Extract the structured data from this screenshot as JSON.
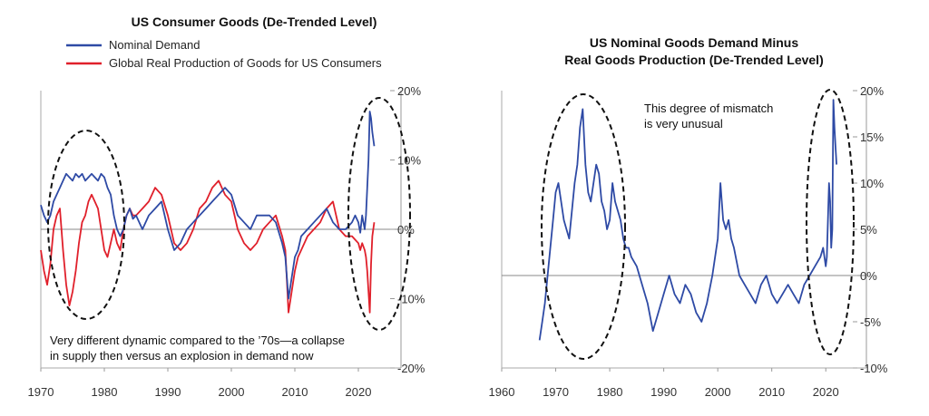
{
  "chart_data": [
    {
      "type": "line",
      "title": "US Consumer Goods (De-Trended Level)",
      "legend": [
        {
          "label": "Nominal Demand",
          "color": "#2e4aa5"
        },
        {
          "label": "Global Real Production of Goods for US Consumers",
          "color": "#e0202b"
        }
      ],
      "xlim": [
        1970,
        2025
      ],
      "ylim": [
        -0.2,
        0.2
      ],
      "x_ticks": [
        "1970",
        "1980",
        "1990",
        "2000",
        "2010",
        "2020"
      ],
      "y_ticks": [
        "20%",
        "10%",
        "0%",
        "-10%",
        "-20%"
      ],
      "annotation": "Very different dynamic compared to the '70s—a collapse in supply then versus an explosion in demand now",
      "annotation_lines": [
        "Very different dynamic compared to the ’70s—a collapse",
        "in supply then versus an explosion in demand now"
      ],
      "series": [
        {
          "name": "Nominal Demand",
          "color": "#2e4aa5",
          "x": [
            1970.0,
            1970.5,
            1971.0,
            1971.5,
            1972.0,
            1972.5,
            1973.0,
            1973.5,
            1974.0,
            1974.5,
            1975.0,
            1975.5,
            1976.0,
            1976.5,
            1977.0,
            1977.5,
            1978.0,
            1978.5,
            1979.0,
            1979.5,
            1980.0,
            1980.5,
            1981.0,
            1981.5,
            1982.0,
            1982.5,
            1983.0,
            1983.5,
            1984.0,
            1984.5,
            1985.0,
            1986.0,
            1987.0,
            1988.0,
            1989.0,
            1990.0,
            1991.0,
            1992.0,
            1993.0,
            1994.0,
            1995.0,
            1996.0,
            1997.0,
            1998.0,
            1999.0,
            2000.0,
            2001.0,
            2002.0,
            2003.0,
            2004.0,
            2005.0,
            2006.0,
            2007.0,
            2008.0,
            2008.5,
            2009.0,
            2009.5,
            2010.0,
            2010.5,
            2011.0,
            2012.0,
            2013.0,
            2014.0,
            2015.0,
            2016.0,
            2017.0,
            2018.0,
            2019.0,
            2019.5,
            2020.0,
            2020.3,
            2020.6,
            2021.0,
            2021.2,
            2021.4,
            2021.6,
            2021.8,
            2022.0,
            2022.2,
            2022.5
          ],
          "y": [
            0.035,
            0.02,
            0.01,
            0.02,
            0.04,
            0.05,
            0.06,
            0.07,
            0.08,
            0.075,
            0.07,
            0.08,
            0.075,
            0.08,
            0.07,
            0.075,
            0.08,
            0.075,
            0.07,
            0.08,
            0.075,
            0.06,
            0.05,
            0.02,
            0.0,
            -0.01,
            0.0,
            0.02,
            0.03,
            0.015,
            0.02,
            0.0,
            0.02,
            0.03,
            0.04,
            0.0,
            -0.03,
            -0.02,
            0.0,
            0.01,
            0.02,
            0.03,
            0.04,
            0.05,
            0.06,
            0.05,
            0.02,
            0.01,
            0.0,
            0.02,
            0.02,
            0.02,
            0.01,
            -0.02,
            -0.04,
            -0.1,
            -0.07,
            -0.04,
            -0.03,
            -0.01,
            0.0,
            0.01,
            0.02,
            0.03,
            0.01,
            0.0,
            0.0,
            0.01,
            0.02,
            0.01,
            -0.005,
            0.02,
            0.0,
            0.02,
            0.06,
            0.1,
            0.17,
            0.16,
            0.14,
            0.12
          ]
        },
        {
          "name": "Global Real Production of Goods for US Consumers",
          "color": "#e0202b",
          "x": [
            1970.0,
            1970.5,
            1971.0,
            1971.5,
            1972.0,
            1972.5,
            1973.0,
            1973.5,
            1974.0,
            1974.5,
            1975.0,
            1975.5,
            1976.0,
            1976.5,
            1977.0,
            1977.5,
            1978.0,
            1978.5,
            1979.0,
            1979.5,
            1980.0,
            1980.5,
            1981.0,
            1981.5,
            1982.0,
            1982.5,
            1983.0,
            1983.5,
            1984.0,
            1984.5,
            1985.0,
            1986.0,
            1987.0,
            1988.0,
            1989.0,
            1990.0,
            1991.0,
            1992.0,
            1993.0,
            1994.0,
            1995.0,
            1996.0,
            1997.0,
            1998.0,
            1999.0,
            2000.0,
            2001.0,
            2002.0,
            2003.0,
            2004.0,
            2005.0,
            2006.0,
            2007.0,
            2008.0,
            2008.5,
            2009.0,
            2009.5,
            2010.0,
            2010.5,
            2011.0,
            2012.0,
            2013.0,
            2014.0,
            2015.0,
            2016.0,
            2017.0,
            2018.0,
            2019.0,
            2019.5,
            2020.0,
            2020.3,
            2020.6,
            2021.0,
            2021.2,
            2021.4,
            2021.6,
            2021.8,
            2022.0,
            2022.2,
            2022.5
          ],
          "y": [
            -0.03,
            -0.06,
            -0.08,
            -0.05,
            0.0,
            0.02,
            0.03,
            -0.03,
            -0.08,
            -0.11,
            -0.09,
            -0.06,
            -0.02,
            0.01,
            0.02,
            0.04,
            0.05,
            0.04,
            0.03,
            0.0,
            -0.03,
            -0.04,
            -0.02,
            0.0,
            -0.02,
            -0.03,
            0.0,
            0.02,
            0.03,
            0.02,
            0.02,
            0.03,
            0.04,
            0.06,
            0.05,
            0.02,
            -0.02,
            -0.03,
            -0.02,
            0.0,
            0.03,
            0.04,
            0.06,
            0.07,
            0.05,
            0.04,
            0.0,
            -0.02,
            -0.03,
            -0.02,
            0.0,
            0.01,
            0.02,
            -0.01,
            -0.03,
            -0.12,
            -0.09,
            -0.06,
            -0.04,
            -0.03,
            -0.01,
            0.0,
            0.01,
            0.03,
            0.04,
            0.0,
            -0.01,
            -0.01,
            -0.015,
            -0.02,
            -0.03,
            -0.02,
            -0.03,
            -0.04,
            -0.06,
            -0.09,
            -0.12,
            -0.05,
            -0.01,
            0.01
          ]
        }
      ]
    },
    {
      "type": "line",
      "title": "US Nominal Goods Demand Minus Real Goods Production (De-Trended Level)",
      "title_lines": [
        "US Nominal Goods Demand Minus",
        "Real Goods Production (De-Trended Level)"
      ],
      "xlim": [
        1960,
        2025
      ],
      "ylim": [
        -0.1,
        0.2
      ],
      "x_ticks": [
        "1960",
        "1970",
        "1980",
        "1990",
        "2000",
        "2010",
        "2020"
      ],
      "y_ticks": [
        "20%",
        "15%",
        "10%",
        "5%",
        "0%",
        "-5%",
        "-10%"
      ],
      "annotation": "This degree of mismatch is very unusual",
      "annotation_lines": [
        "This degree of mismatch",
        "is very unusual"
      ],
      "series": [
        {
          "name": "US Nominal Goods Demand Minus Real Goods Production",
          "color": "#2e4aa5",
          "x": [
            1967.0,
            1967.5,
            1968.0,
            1968.5,
            1969.0,
            1969.5,
            1970.0,
            1970.5,
            1971.0,
            1971.5,
            1972.0,
            1972.5,
            1973.0,
            1973.5,
            1974.0,
            1974.5,
            1975.0,
            1975.5,
            1976.0,
            1976.5,
            1977.0,
            1977.5,
            1978.0,
            1978.5,
            1979.0,
            1979.5,
            1980.0,
            1980.5,
            1981.0,
            1981.5,
            1982.0,
            1982.5,
            1983.0,
            1983.5,
            1984.0,
            1985.0,
            1986.0,
            1987.0,
            1988.0,
            1989.0,
            1990.0,
            1991.0,
            1992.0,
            1993.0,
            1994.0,
            1995.0,
            1996.0,
            1997.0,
            1998.0,
            1999.0,
            2000.0,
            2000.5,
            2001.0,
            2001.5,
            2002.0,
            2002.5,
            2003.0,
            2004.0,
            2005.0,
            2006.0,
            2007.0,
            2008.0,
            2009.0,
            2010.0,
            2011.0,
            2012.0,
            2013.0,
            2014.0,
            2015.0,
            2016.0,
            2017.0,
            2018.0,
            2019.0,
            2019.5,
            2020.0,
            2020.2,
            2020.4,
            2020.6,
            2020.8,
            2021.0,
            2021.2,
            2021.4,
            2021.6,
            2021.8,
            2022.0
          ],
          "y": [
            -0.07,
            -0.05,
            -0.03,
            0.0,
            0.03,
            0.06,
            0.09,
            0.1,
            0.08,
            0.06,
            0.05,
            0.04,
            0.07,
            0.1,
            0.12,
            0.16,
            0.18,
            0.12,
            0.09,
            0.08,
            0.1,
            0.12,
            0.11,
            0.08,
            0.07,
            0.05,
            0.06,
            0.1,
            0.08,
            0.07,
            0.06,
            0.04,
            0.03,
            0.03,
            0.02,
            0.01,
            -0.01,
            -0.03,
            -0.06,
            -0.04,
            -0.02,
            0.0,
            -0.02,
            -0.03,
            -0.01,
            -0.02,
            -0.04,
            -0.05,
            -0.03,
            0.0,
            0.04,
            0.1,
            0.06,
            0.05,
            0.06,
            0.04,
            0.03,
            0.0,
            -0.01,
            -0.02,
            -0.03,
            -0.01,
            0.0,
            -0.02,
            -0.03,
            -0.02,
            -0.01,
            -0.02,
            -0.03,
            -0.01,
            0.0,
            0.01,
            0.02,
            0.03,
            0.01,
            0.02,
            0.06,
            0.1,
            0.08,
            0.03,
            0.05,
            0.19,
            0.16,
            0.14,
            0.12
          ]
        }
      ]
    }
  ]
}
